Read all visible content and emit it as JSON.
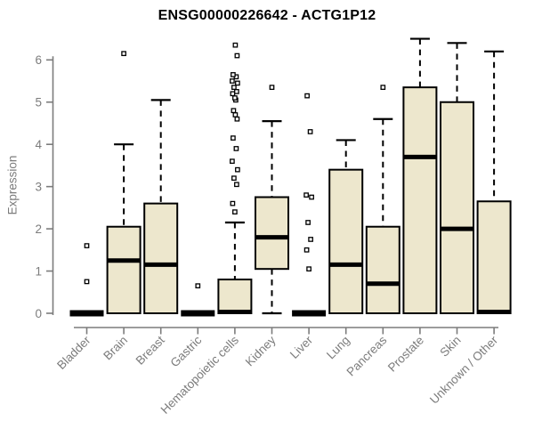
{
  "chart_data": {
    "type": "boxplot",
    "title": "ENSG00000226642 - ACTG1P12",
    "xlabel": "",
    "ylabel": "Expression",
    "ylim": [
      0,
      6.6
    ],
    "yticks": [
      0,
      1,
      2,
      3,
      4,
      5,
      6
    ],
    "grid": false,
    "legend_position": "none",
    "xtick_rotation_deg": 45,
    "categories": [
      "Bladder",
      "Brain",
      "Breast",
      "Gastric",
      "Hematopoietic cells",
      "Kidney",
      "Liver",
      "Lung",
      "Pancreas",
      "Prostate",
      "Skin",
      "Unknown / Other"
    ],
    "boxes": [
      {
        "category": "Bladder",
        "whisker_low": 0,
        "q1": 0,
        "median": 0,
        "q3": 0,
        "whisker_high": 0,
        "outliers": [
          0.75,
          1.6
        ]
      },
      {
        "category": "Brain",
        "whisker_low": 0,
        "q1": 0,
        "median": 1.25,
        "q3": 2.05,
        "whisker_high": 4.0,
        "outliers": [
          6.15
        ]
      },
      {
        "category": "Breast",
        "whisker_low": 0,
        "q1": 0,
        "median": 1.15,
        "q3": 2.6,
        "whisker_high": 5.05,
        "outliers": []
      },
      {
        "category": "Gastric",
        "whisker_low": 0,
        "q1": 0,
        "median": 0,
        "q3": 0,
        "whisker_high": 0,
        "outliers": [
          0.65
        ]
      },
      {
        "category": "Hematopoietic cells",
        "whisker_low": 0,
        "q1": 0,
        "median": 0,
        "q3": 0.8,
        "whisker_high": 2.15,
        "outliers": [
          2.4,
          2.6,
          3.05,
          3.2,
          3.4,
          3.6,
          3.9,
          4.15,
          4.6,
          4.7,
          4.8,
          5.05,
          5.1,
          5.2,
          5.25,
          5.35,
          5.45,
          5.5,
          5.6,
          5.65,
          6.1,
          6.35
        ]
      },
      {
        "category": "Kidney",
        "whisker_low": 0,
        "q1": 1.05,
        "median": 1.8,
        "q3": 2.75,
        "whisker_high": 4.55,
        "outliers": [
          5.35
        ]
      },
      {
        "category": "Liver",
        "whisker_low": 0,
        "q1": 0,
        "median": 0,
        "q3": 0,
        "whisker_high": 0,
        "outliers": [
          1.05,
          1.5,
          1.75,
          2.15,
          2.75,
          2.8,
          4.3,
          5.15
        ]
      },
      {
        "category": "Lung",
        "whisker_low": 0,
        "q1": 0,
        "median": 1.15,
        "q3": 3.4,
        "whisker_high": 4.1,
        "outliers": []
      },
      {
        "category": "Pancreas",
        "whisker_low": 0,
        "q1": 0,
        "median": 0.7,
        "q3": 2.05,
        "whisker_high": 4.6,
        "outliers": [
          5.35
        ]
      },
      {
        "category": "Prostate",
        "whisker_low": 0,
        "q1": 0,
        "median": 3.7,
        "q3": 5.35,
        "whisker_high": 6.5,
        "outliers": []
      },
      {
        "category": "Skin",
        "whisker_low": 0,
        "q1": 0,
        "median": 2.0,
        "q3": 5.0,
        "whisker_high": 6.4,
        "outliers": []
      },
      {
        "category": "Unknown / Other",
        "whisker_low": 0,
        "q1": 0,
        "median": 0,
        "q3": 2.65,
        "whisker_high": 6.2,
        "outliers": []
      }
    ],
    "colors": {
      "box_fill": "#EDE7CD",
      "box_stroke": "#000000",
      "median": "#000000",
      "outlier_fill": "#FFFFFF",
      "axis": "#7C7C7C",
      "title_color": "#000000"
    }
  }
}
